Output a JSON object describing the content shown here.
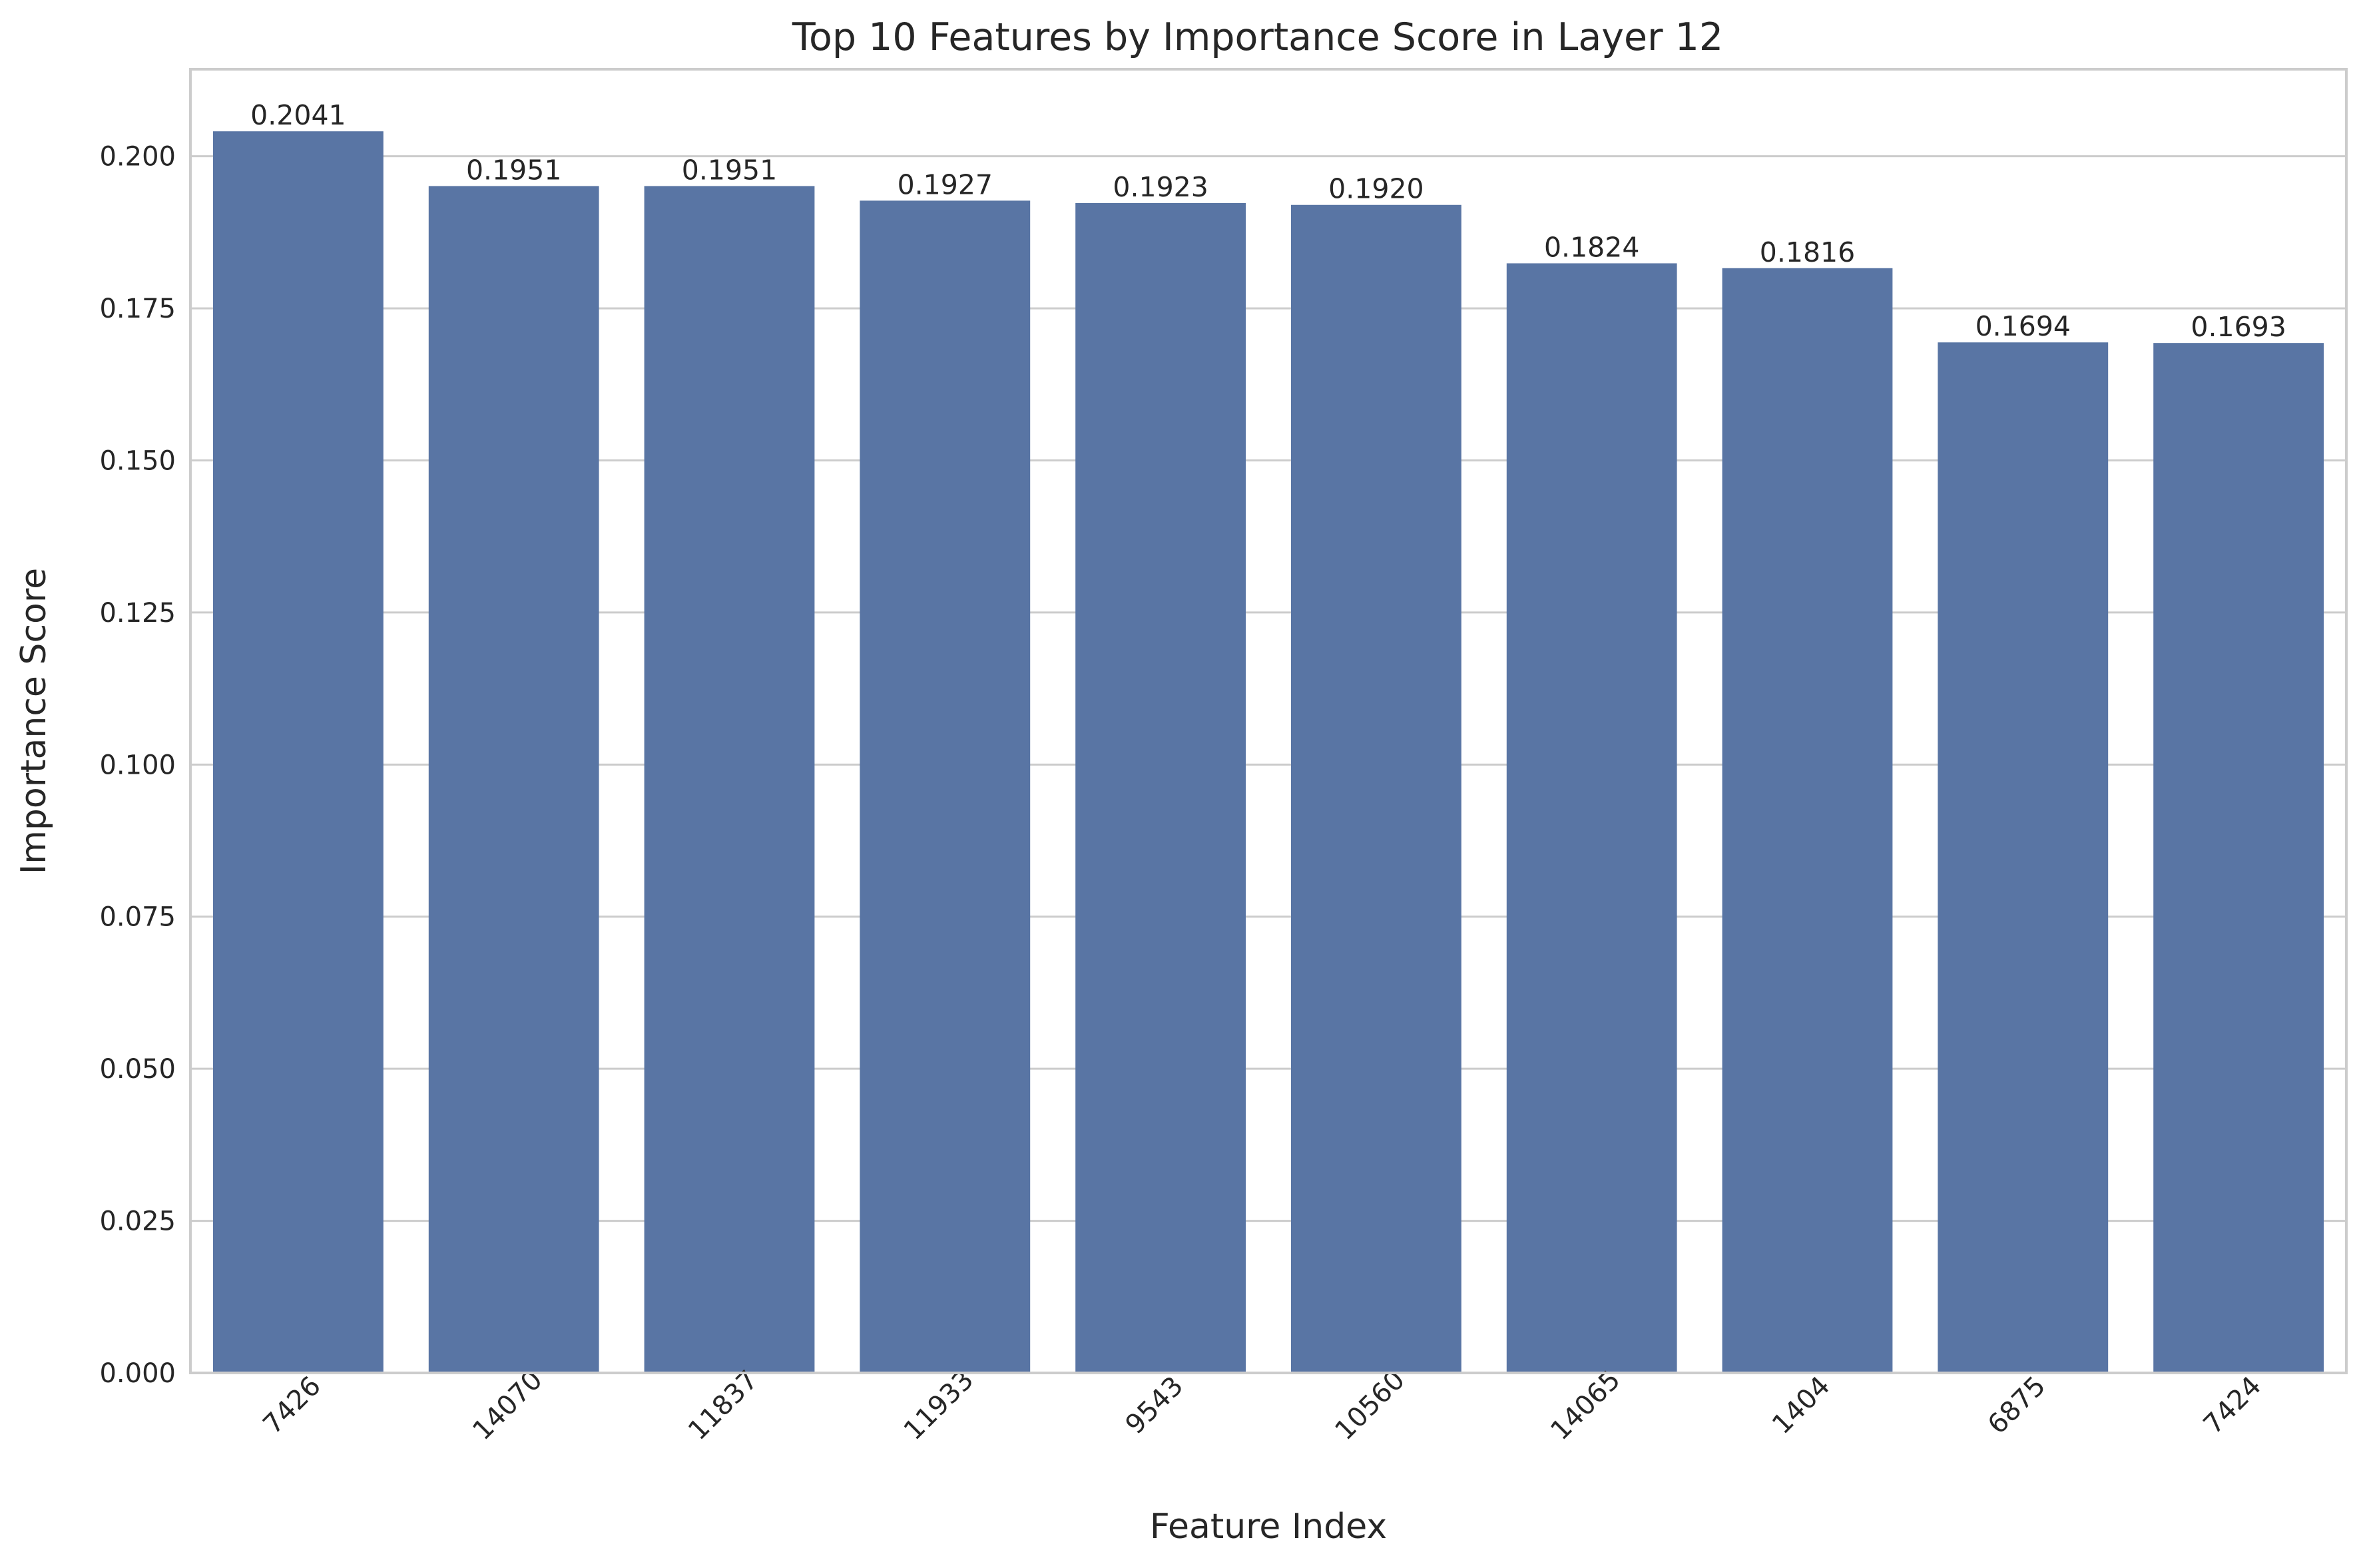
{
  "chart_data": {
    "type": "bar",
    "title": "Top 10 Features by Importance Score in Layer 12",
    "xlabel": "Feature Index",
    "ylabel": "Importance Score",
    "categories": [
      "7426",
      "14070",
      "11837",
      "11933",
      "9543",
      "10560",
      "14065",
      "1404",
      "6875",
      "7424"
    ],
    "values": [
      0.2041,
      0.1951,
      0.1951,
      0.1927,
      0.1923,
      0.192,
      0.1824,
      0.1816,
      0.1694,
      0.1693
    ],
    "value_labels": [
      "0.2041",
      "0.1951",
      "0.1951",
      "0.1927",
      "0.1923",
      "0.1920",
      "0.1824",
      "0.1816",
      "0.1694",
      "0.1693"
    ],
    "ylim": [
      0,
      0.2143
    ],
    "yticks": [
      0.0,
      0.025,
      0.05,
      0.075,
      0.1,
      0.125,
      0.15,
      0.175,
      0.2
    ],
    "ytick_labels": [
      "0.000",
      "0.025",
      "0.050",
      "0.075",
      "0.100",
      "0.125",
      "0.150",
      "0.175",
      "0.200"
    ],
    "grid": "horizontal",
    "bar_color": "#5975a4",
    "grid_color": "#cccccc",
    "spine_color": "#cccccc",
    "xtick_rotation_deg": 45
  }
}
